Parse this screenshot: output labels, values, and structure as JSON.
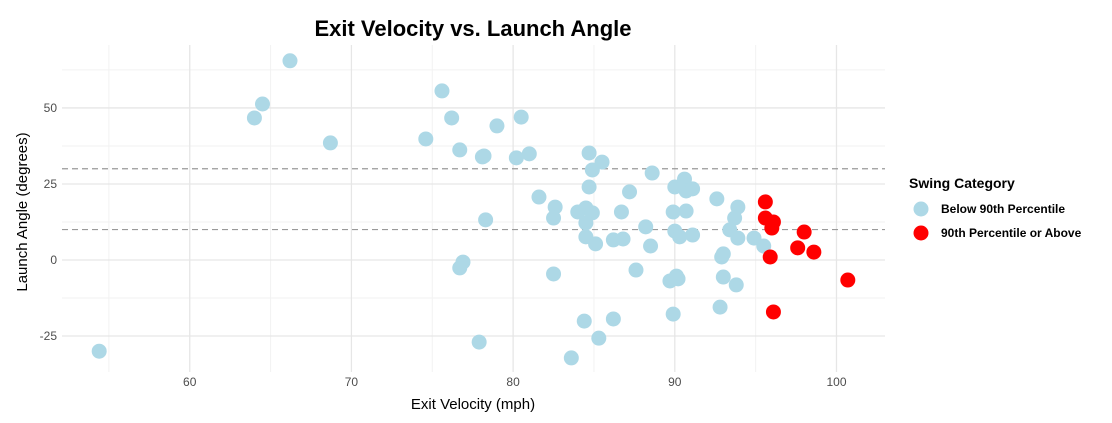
{
  "chart_data": {
    "type": "scatter",
    "title": "Exit Velocity vs. Launch Angle",
    "xlabel": "Exit Velocity (mph)",
    "ylabel": "Launch Angle (degrees)",
    "xlim": [
      52.1,
      103.0
    ],
    "ylim": [
      -44.4,
      70.7
    ],
    "x_ticks": [
      60,
      70,
      80,
      90,
      100
    ],
    "y_ticks": [
      -25,
      0,
      25,
      50
    ],
    "grid": true,
    "reference_lines": [
      {
        "axis": "y",
        "value": 30,
        "style": "dashed"
      },
      {
        "axis": "y",
        "value": 10,
        "style": "dashed"
      }
    ],
    "legend": {
      "title": "Swing Category",
      "placement": "right"
    },
    "series": [
      {
        "name": "Below 90th Percentile",
        "color": "#add8e6",
        "points": [
          [
            54.4,
            -30
          ],
          [
            64.0,
            46.7
          ],
          [
            64.5,
            51.3
          ],
          [
            66.2,
            65.5
          ],
          [
            68.7,
            38.5
          ],
          [
            74.6,
            39.8
          ],
          [
            75.6,
            55.6
          ],
          [
            76.2,
            46.7
          ],
          [
            76.7,
            36.2
          ],
          [
            78.1,
            33.9
          ],
          [
            78.2,
            34.2
          ],
          [
            79.0,
            44.1
          ],
          [
            80.5,
            47.0
          ],
          [
            80.2,
            33.6
          ],
          [
            81.0,
            34.9
          ],
          [
            78.3,
            13.2
          ],
          [
            76.9,
            -0.7
          ],
          [
            76.7,
            -2.6
          ],
          [
            77.9,
            -27
          ],
          [
            81.6,
            20.7
          ],
          [
            82.6,
            17.4
          ],
          [
            82.5,
            13.8
          ],
          [
            82.5,
            -4.6
          ],
          [
            84.0,
            15.8
          ],
          [
            84.5,
            17.1
          ],
          [
            84.9,
            15.5
          ],
          [
            84.5,
            12.2
          ],
          [
            84.5,
            7.6
          ],
          [
            85.1,
            5.3
          ],
          [
            84.7,
            35.2
          ],
          [
            85.5,
            32.2
          ],
          [
            84.9,
            29.6
          ],
          [
            84.7,
            24.0
          ],
          [
            87.2,
            22.4
          ],
          [
            88.6,
            28.6
          ],
          [
            90.0,
            24.0
          ],
          [
            90.6,
            26.6
          ],
          [
            90.7,
            22.7
          ],
          [
            91.1,
            23.4
          ],
          [
            92.6,
            20.1
          ],
          [
            86.7,
            15.8
          ],
          [
            86.2,
            6.6
          ],
          [
            86.8,
            6.9
          ],
          [
            88.2,
            10.9
          ],
          [
            88.5,
            4.6
          ],
          [
            87.6,
            -3.3
          ],
          [
            89.9,
            15.8
          ],
          [
            90.7,
            16.1
          ],
          [
            90.0,
            9.5
          ],
          [
            90.3,
            7.6
          ],
          [
            91.1,
            8.2
          ],
          [
            90.1,
            -5.3
          ],
          [
            89.7,
            -6.9
          ],
          [
            90.2,
            -6.2
          ],
          [
            85.3,
            -25.7
          ],
          [
            86.2,
            -19.4
          ],
          [
            84.4,
            -20.1
          ],
          [
            83.6,
            -32.2
          ],
          [
            89.9,
            -17.8
          ],
          [
            93.9,
            17.4
          ],
          [
            93.7,
            13.8
          ],
          [
            93.4,
            9.9
          ],
          [
            93.9,
            7.2
          ],
          [
            94.9,
            7.2
          ],
          [
            95.5,
            4.6
          ],
          [
            93.0,
            2.0
          ],
          [
            92.9,
            1.0
          ],
          [
            93.0,
            -5.6
          ],
          [
            93.8,
            -8.2
          ],
          [
            92.8,
            -15.5
          ]
        ]
      },
      {
        "name": "90th Percentile or Above",
        "color": "#ff0000",
        "points": [
          [
            95.6,
            19.1
          ],
          [
            95.6,
            13.8
          ],
          [
            96.1,
            12.5
          ],
          [
            96.0,
            10.5
          ],
          [
            95.9,
            1.0
          ],
          [
            98.0,
            9.2
          ],
          [
            97.6,
            4.0
          ],
          [
            98.6,
            2.6
          ],
          [
            96.1,
            -17.1
          ],
          [
            100.7,
            -6.6
          ]
        ]
      }
    ]
  }
}
